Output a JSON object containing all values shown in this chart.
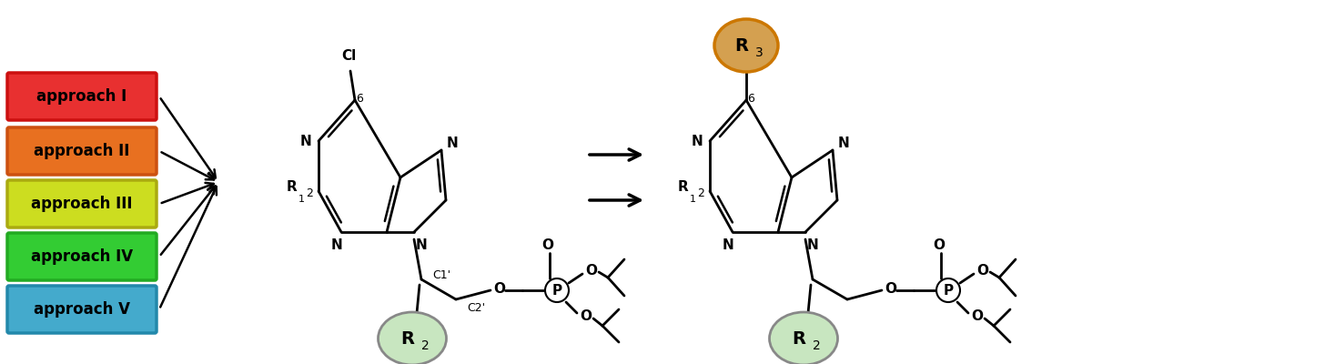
{
  "approaches": [
    "approach I",
    "approach II",
    "approach III",
    "approach IV",
    "approach V"
  ],
  "approach_colors": [
    "#E83030",
    "#E87020",
    "#CCDD20",
    "#33CC33",
    "#44AACC"
  ],
  "approach_border_colors": [
    "#CC1010",
    "#CC5010",
    "#AAAA10",
    "#22AA22",
    "#2288AA"
  ],
  "bg_color": "#FFFFFF",
  "r2_fill": "#C8E6C0",
  "r2_edge": "#888888",
  "r3_fill": "#D4A050",
  "r3_edge": "#CC7700"
}
